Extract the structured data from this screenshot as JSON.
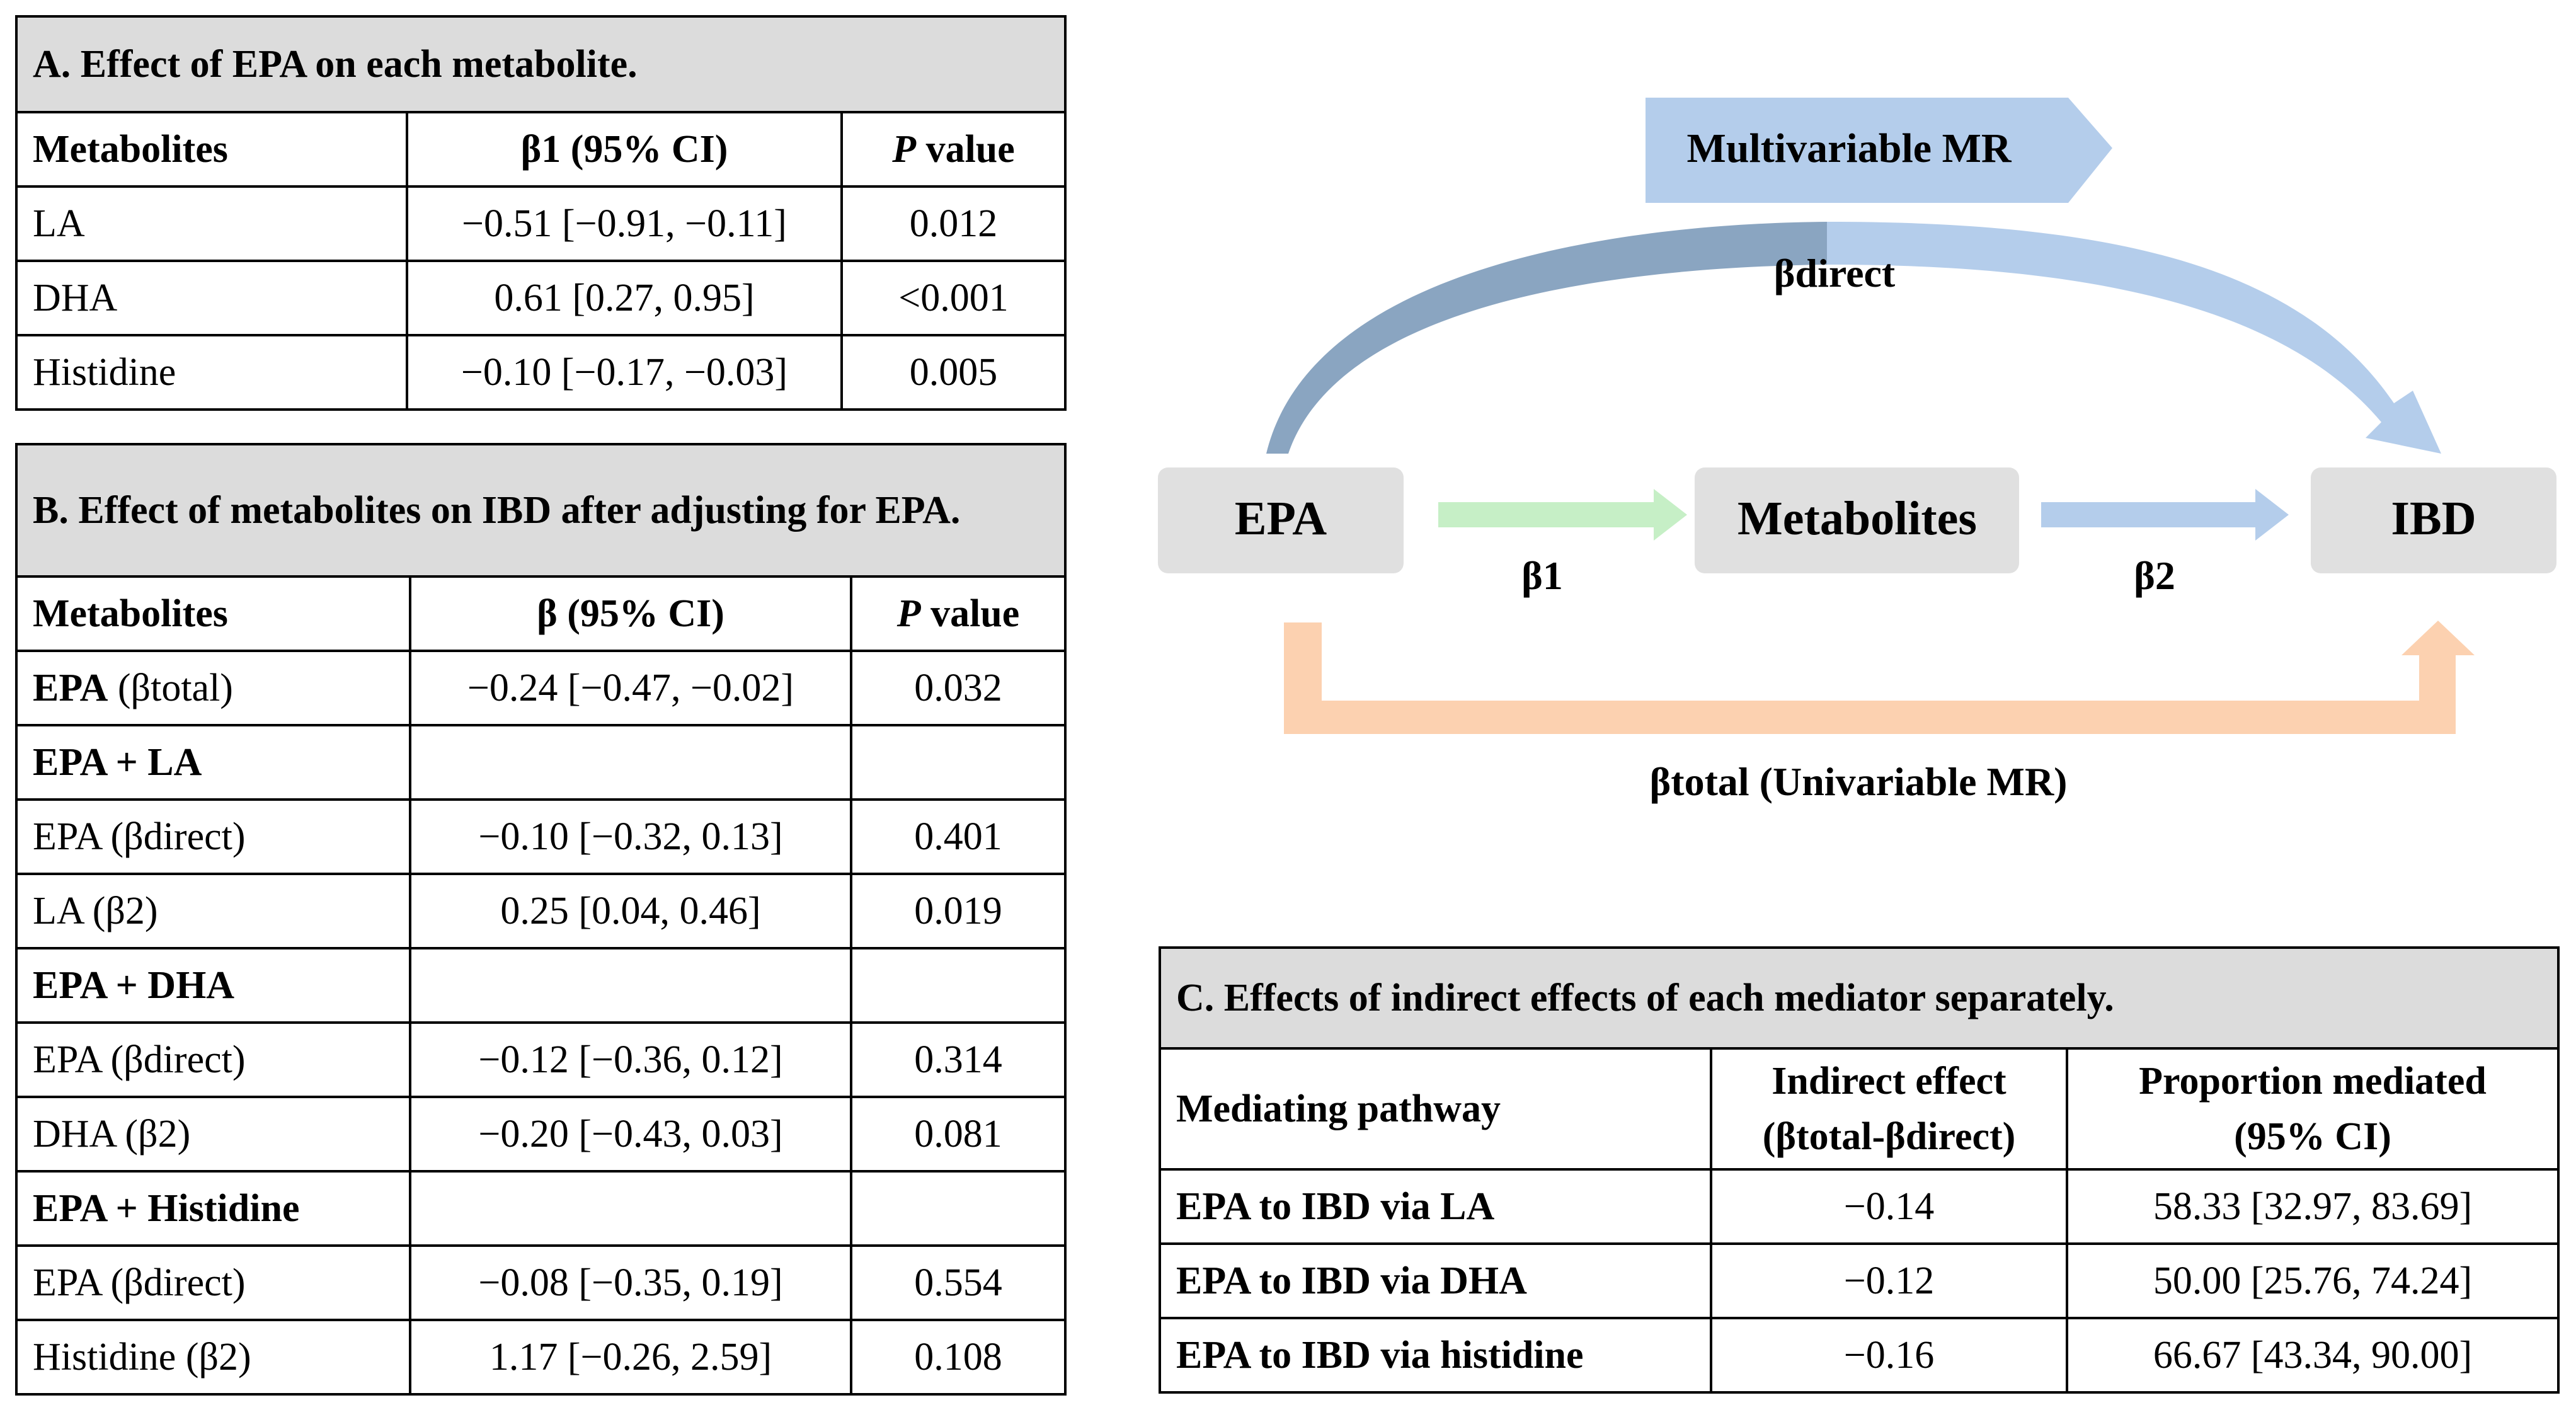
{
  "tableA": {
    "title": "A. Effect of EPA on each metabolite.",
    "headers": {
      "metabolites": "Metabolites",
      "beta": "β1 (95% CI)",
      "p_italic": "P",
      "p_rest": " value"
    },
    "rows": [
      {
        "name": "LA",
        "beta": "−0.51 [−0.91, −0.11]",
        "p": "0.012"
      },
      {
        "name": "DHA",
        "beta": "0.61 [0.27, 0.95]",
        "p": "<0.001"
      },
      {
        "name": "Histidine",
        "beta": "−0.10 [−0.17, −0.03]",
        "p": "0.005"
      }
    ]
  },
  "tableB": {
    "title": "B. Effect of metabolites on IBD after adjusting for EPA.",
    "headers": {
      "metabolites": "Metabolites",
      "beta": "β (95% CI)",
      "p_italic": "P",
      "p_rest": " value"
    },
    "row0": {
      "bold": "EPA",
      "rest": " (βtotal)",
      "beta": "−0.24 [−0.47, −0.02]",
      "p": "0.032"
    },
    "group_la": "EPA + LA",
    "la_rows": [
      {
        "name": "EPA (βdirect)",
        "beta": "−0.10 [−0.32, 0.13]",
        "p": "0.401"
      },
      {
        "name": "LA (β2)",
        "beta": "0.25 [0.04, 0.46]",
        "p": "0.019"
      }
    ],
    "group_dha": "EPA + DHA",
    "dha_rows": [
      {
        "name": "EPA (βdirect)",
        "beta": "−0.12 [−0.36, 0.12]",
        "p": "0.314"
      },
      {
        "name": "DHA (β2)",
        "beta": "−0.20 [−0.43, 0.03]",
        "p": "0.081"
      }
    ],
    "group_his": "EPA + Histidine",
    "his_rows": [
      {
        "name": "EPA (βdirect)",
        "beta": "−0.08 [−0.35, 0.19]",
        "p": "0.554"
      },
      {
        "name": "Histidine (β2)",
        "beta": "1.17 [−0.26, 2.59]",
        "p": "0.108"
      }
    ]
  },
  "tableC": {
    "title": "C. Effects of indirect effects of each mediator separately.",
    "headers": {
      "pathway": "Mediating pathway",
      "indirect_l1": "Indirect effect",
      "indirect_l2": "(βtotal-βdirect)",
      "prop_l1": "Proportion mediated",
      "prop_l2": "(95% CI)"
    },
    "rows": [
      {
        "pathway": "EPA to IBD via LA",
        "indirect": "−0.14",
        "prop": "58.33 [32.97, 83.69]"
      },
      {
        "pathway": "EPA to IBD via DHA",
        "indirect": "−0.12",
        "prop": "50.00 [25.76, 74.24]"
      },
      {
        "pathway": "EPA to IBD via histidine",
        "indirect": "−0.16",
        "prop": "66.67 [43.34, 90.00]"
      }
    ]
  },
  "diagram": {
    "multivariable_label": "Multivariable MR",
    "beta_direct": "βdirect",
    "node_epa": "EPA",
    "node_metabolites": "Metabolites",
    "node_ibd": "IBD",
    "beta1": "β1",
    "beta2": "β2",
    "beta_total": "βtotal (Univariable MR)",
    "colors": {
      "node_fill": "#e0e0e0",
      "green_arrow": "#c6efc6",
      "blue_arrow": "#b4cdeb",
      "orange_arrow": "#fcd1b0",
      "curve_dark": "#8aa5c1",
      "curve_light": "#b4cdeb"
    }
  }
}
